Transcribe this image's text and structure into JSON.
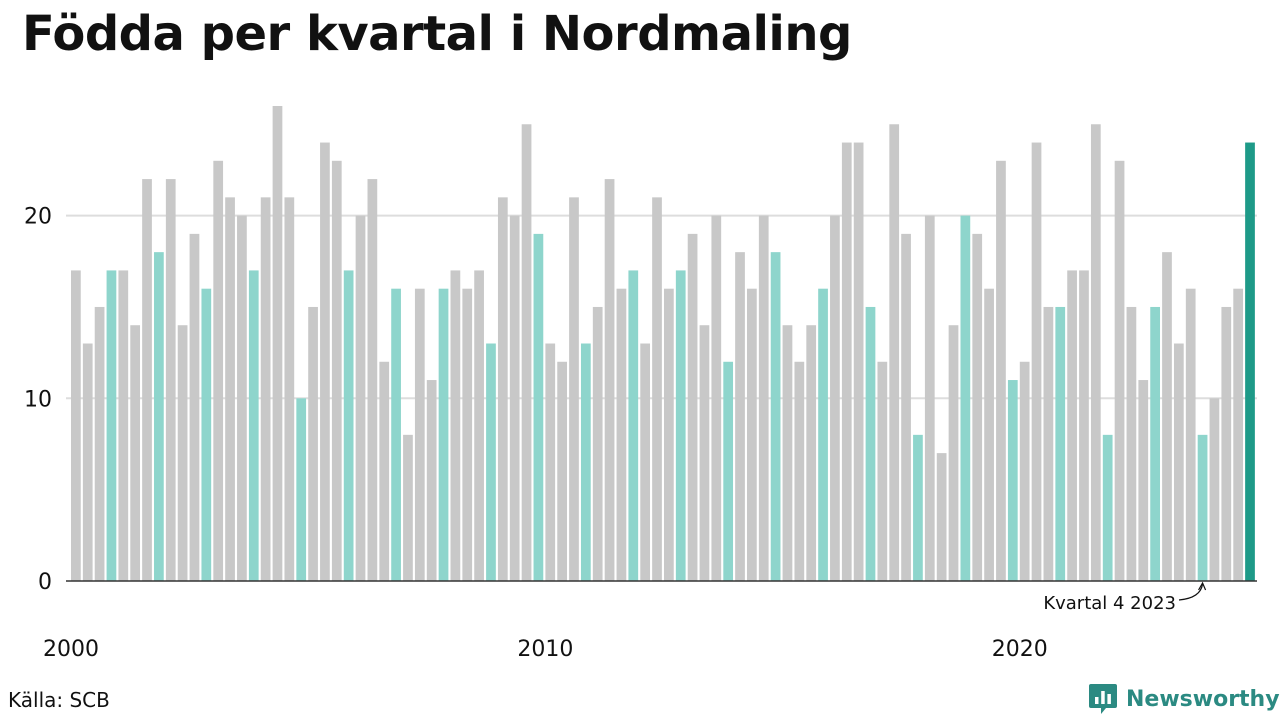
{
  "title": "Födda per kvartal i Nordmaling",
  "source": "Källa: SCB",
  "brand": "Newsworthy",
  "colors": {
    "bar_default": "#c8c8c8",
    "bar_q4": "#8ed5cc",
    "bar_latest": "#1e9a88",
    "grid": "#dddddd",
    "axis": "#333333",
    "brand": "#2b8a82"
  },
  "chart_data": {
    "type": "bar",
    "title": "Födda per kvartal i Nordmaling",
    "xlabel": "",
    "ylabel": "",
    "ylim": [
      0,
      26
    ],
    "yticks": [
      0,
      10,
      20
    ],
    "xticks": [
      {
        "label": "2000",
        "index": 0
      },
      {
        "label": "2010",
        "index": 40
      },
      {
        "label": "2020",
        "index": 80
      }
    ],
    "grid": true,
    "start": "2000 kvartal 1",
    "highlight_every": "kvartal 4",
    "values": [
      17,
      13,
      15,
      17,
      17,
      14,
      22,
      18,
      22,
      14,
      19,
      16,
      23,
      21,
      20,
      17,
      21,
      26,
      21,
      10,
      15,
      24,
      23,
      17,
      20,
      22,
      12,
      16,
      8,
      16,
      11,
      16,
      17,
      16,
      17,
      13,
      21,
      20,
      25,
      19,
      13,
      12,
      21,
      13,
      15,
      22,
      16,
      17,
      13,
      21,
      16,
      17,
      19,
      14,
      20,
      12,
      18,
      16,
      20,
      18,
      14,
      12,
      14,
      16,
      20,
      24,
      24,
      15,
      12,
      25,
      19,
      8,
      20,
      7,
      14,
      20,
      19,
      16,
      23,
      11,
      12,
      24,
      15,
      15,
      17,
      17,
      25,
      8,
      23,
      15,
      11,
      15,
      18,
      13,
      16,
      8,
      10,
      15,
      16,
      24
    ],
    "annotation": {
      "text": "Kvartal 4 2023",
      "index": 95
    }
  }
}
